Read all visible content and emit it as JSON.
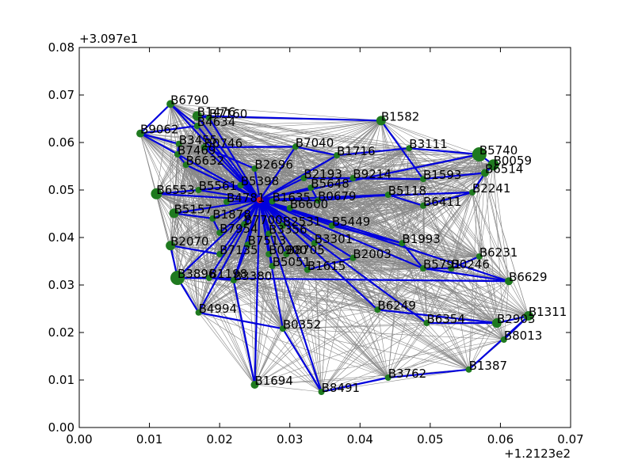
{
  "chart_data": {
    "type": "scatter",
    "title": "",
    "xlabel": "",
    "ylabel": "",
    "xlim": [
      0.0,
      0.07
    ],
    "ylim": [
      0.0,
      0.08
    ],
    "x_offset_label": "+1.2123e2",
    "y_offset_label": "+3.097e1",
    "x_ticks": [
      {
        "value": 0.0,
        "label": "0.00"
      },
      {
        "value": 0.01,
        "label": "0.01"
      },
      {
        "value": 0.02,
        "label": "0.02"
      },
      {
        "value": 0.03,
        "label": "0.03"
      },
      {
        "value": 0.04,
        "label": "0.04"
      },
      {
        "value": 0.05,
        "label": "0.05"
      },
      {
        "value": 0.06,
        "label": "0.06"
      },
      {
        "value": 0.07,
        "label": "0.07"
      }
    ],
    "y_ticks": [
      {
        "value": 0.0,
        "label": "0.00"
      },
      {
        "value": 0.01,
        "label": "0.01"
      },
      {
        "value": 0.02,
        "label": "0.02"
      },
      {
        "value": 0.03,
        "label": "0.03"
      },
      {
        "value": 0.04,
        "label": "0.04"
      },
      {
        "value": 0.05,
        "label": "0.05"
      },
      {
        "value": 0.06,
        "label": "0.06"
      },
      {
        "value": 0.07,
        "label": "0.07"
      },
      {
        "value": 0.08,
        "label": "0.08"
      }
    ],
    "grid": false,
    "colors": {
      "node": "#1f7a1f",
      "hub": "#cc2222",
      "mesh_edge": "#888888",
      "tree_edge": "#0000dd",
      "axis": "#000000"
    },
    "hub": {
      "x": 0.0257,
      "y": 0.0479
    },
    "nodes": [
      {
        "name": "B6790",
        "x": 0.013,
        "y": 0.0681,
        "size": 5
      },
      {
        "name": "B1476",
        "x": 0.0168,
        "y": 0.0656,
        "size": 6
      },
      {
        "name": "B7160",
        "x": 0.0185,
        "y": 0.0652,
        "size": 4
      },
      {
        "name": "B4634",
        "x": 0.0168,
        "y": 0.0635,
        "size": 4
      },
      {
        "name": "B9062",
        "x": 0.0087,
        "y": 0.0619,
        "size": 5
      },
      {
        "name": "B3455",
        "x": 0.0142,
        "y": 0.0597,
        "size": 4
      },
      {
        "name": "B0746",
        "x": 0.0178,
        "y": 0.059,
        "size": 4
      },
      {
        "name": "B7469",
        "x": 0.014,
        "y": 0.0575,
        "size": 4
      },
      {
        "name": "B6632",
        "x": 0.0152,
        "y": 0.0553,
        "size": 4
      },
      {
        "name": "B7040",
        "x": 0.0308,
        "y": 0.0591,
        "size": 4
      },
      {
        "name": "B1716",
        "x": 0.0367,
        "y": 0.0573,
        "size": 4
      },
      {
        "name": "B1582",
        "x": 0.043,
        "y": 0.0646,
        "size": 6
      },
      {
        "name": "B3111",
        "x": 0.047,
        "y": 0.0588,
        "size": 4
      },
      {
        "name": "B5740",
        "x": 0.057,
        "y": 0.0575,
        "size": 9
      },
      {
        "name": "B0059",
        "x": 0.059,
        "y": 0.0553,
        "size": 7
      },
      {
        "name": "B6514",
        "x": 0.0578,
        "y": 0.0536,
        "size": 5
      },
      {
        "name": "B2696",
        "x": 0.025,
        "y": 0.0545,
        "size": 4
      },
      {
        "name": "B2193",
        "x": 0.032,
        "y": 0.0525,
        "size": 4
      },
      {
        "name": "B9214",
        "x": 0.039,
        "y": 0.0525,
        "size": 4
      },
      {
        "name": "B1593",
        "x": 0.049,
        "y": 0.0523,
        "size": 4
      },
      {
        "name": "B5648",
        "x": 0.033,
        "y": 0.0505,
        "size": 4
      },
      {
        "name": "B6553",
        "x": 0.011,
        "y": 0.0492,
        "size": 7
      },
      {
        "name": "B5561",
        "x": 0.017,
        "y": 0.05,
        "size": 4
      },
      {
        "name": "B5398",
        "x": 0.023,
        "y": 0.051,
        "size": 4
      },
      {
        "name": "B5118",
        "x": 0.044,
        "y": 0.049,
        "size": 4
      },
      {
        "name": "B2241",
        "x": 0.056,
        "y": 0.0495,
        "size": 4
      },
      {
        "name": "B6411",
        "x": 0.049,
        "y": 0.0467,
        "size": 4
      },
      {
        "name": "B0679",
        "x": 0.034,
        "y": 0.0478,
        "size": 4
      },
      {
        "name": "B4781",
        "x": 0.021,
        "y": 0.0475,
        "size": 4
      },
      {
        "name": "B1635",
        "x": 0.0275,
        "y": 0.0476,
        "size": 4
      },
      {
        "name": "B6600",
        "x": 0.03,
        "y": 0.0462,
        "size": 4
      },
      {
        "name": "B5157",
        "x": 0.0135,
        "y": 0.0451,
        "size": 6
      },
      {
        "name": "B1878",
        "x": 0.019,
        "y": 0.044,
        "size": 4
      },
      {
        "name": "B7700",
        "x": 0.0235,
        "y": 0.0428,
        "size": 4
      },
      {
        "name": "B2531",
        "x": 0.029,
        "y": 0.0425,
        "size": 4
      },
      {
        "name": "B5449",
        "x": 0.036,
        "y": 0.0425,
        "size": 4
      },
      {
        "name": "B7954",
        "x": 0.02,
        "y": 0.041,
        "size": 4
      },
      {
        "name": "B3356",
        "x": 0.027,
        "y": 0.0408,
        "size": 4
      },
      {
        "name": "B2070",
        "x": 0.013,
        "y": 0.0383,
        "size": 6
      },
      {
        "name": "B7513",
        "x": 0.024,
        "y": 0.0385,
        "size": 4
      },
      {
        "name": "B3301",
        "x": 0.0335,
        "y": 0.0388,
        "size": 4
      },
      {
        "name": "B1993",
        "x": 0.046,
        "y": 0.0388,
        "size": 4
      },
      {
        "name": "B7135",
        "x": 0.02,
        "y": 0.0365,
        "size": 4
      },
      {
        "name": "B0900",
        "x": 0.027,
        "y": 0.0365,
        "size": 4
      },
      {
        "name": "B8705",
        "x": 0.0295,
        "y": 0.0365,
        "size": 4
      },
      {
        "name": "B2003",
        "x": 0.039,
        "y": 0.0357,
        "size": 4
      },
      {
        "name": "B6231",
        "x": 0.057,
        "y": 0.036,
        "size": 4
      },
      {
        "name": "B5051",
        "x": 0.0275,
        "y": 0.034,
        "size": 4
      },
      {
        "name": "B1615",
        "x": 0.0325,
        "y": 0.0332,
        "size": 4
      },
      {
        "name": "B5791",
        "x": 0.049,
        "y": 0.0335,
        "size": 4
      },
      {
        "name": "B0246",
        "x": 0.053,
        "y": 0.0335,
        "size": 4
      },
      {
        "name": "B3896",
        "x": 0.014,
        "y": 0.0315,
        "size": 9
      },
      {
        "name": "B1198",
        "x": 0.0185,
        "y": 0.0315,
        "size": 4
      },
      {
        "name": "B3380",
        "x": 0.022,
        "y": 0.031,
        "size": 4
      },
      {
        "name": "B6629",
        "x": 0.0612,
        "y": 0.0308,
        "size": 5
      },
      {
        "name": "B4994",
        "x": 0.017,
        "y": 0.0242,
        "size": 4
      },
      {
        "name": "B6249",
        "x": 0.0425,
        "y": 0.0248,
        "size": 4
      },
      {
        "name": "B1311",
        "x": 0.064,
        "y": 0.0235,
        "size": 6
      },
      {
        "name": "B2903",
        "x": 0.0595,
        "y": 0.022,
        "size": 6
      },
      {
        "name": "B6354",
        "x": 0.0495,
        "y": 0.022,
        "size": 4
      },
      {
        "name": "B0352",
        "x": 0.029,
        "y": 0.0208,
        "size": 4
      },
      {
        "name": "B8013",
        "x": 0.0605,
        "y": 0.0185,
        "size": 4
      },
      {
        "name": "B1387",
        "x": 0.0555,
        "y": 0.0122,
        "size": 4
      },
      {
        "name": "B3762",
        "x": 0.044,
        "y": 0.0105,
        "size": 4
      },
      {
        "name": "B1694",
        "x": 0.025,
        "y": 0.009,
        "size": 5
      },
      {
        "name": "B8491",
        "x": 0.0345,
        "y": 0.0075,
        "size": 4
      }
    ],
    "tree_edges": [
      [
        "B6790",
        "B9062"
      ],
      [
        "B6790",
        "B4634"
      ],
      [
        "B1476",
        "B7160"
      ],
      [
        "B1476",
        "B1582"
      ],
      [
        "B9062",
        "B3455"
      ],
      [
        "B9062",
        "B4634"
      ],
      [
        "B3455",
        "B7469"
      ],
      [
        "B7469",
        "B6632"
      ],
      [
        "B0746",
        "B7040"
      ],
      [
        "B7040",
        "B1716"
      ],
      [
        "B1716",
        "B3111"
      ],
      [
        "B3111",
        "B5740"
      ],
      [
        "B5740",
        "B0059"
      ],
      [
        "B0059",
        "B6514"
      ],
      [
        "B6514",
        "B1593"
      ],
      [
        "B1593",
        "B2193"
      ],
      [
        "B1582",
        "B1593"
      ],
      [
        "B2193",
        "B9214"
      ],
      [
        "B1593",
        "B9214"
      ],
      [
        "B2696",
        "B0746"
      ],
      [
        "B2241",
        "B6411"
      ],
      [
        "B6411",
        "B5118"
      ],
      [
        "B5118",
        "B0679"
      ],
      [
        "B6514",
        "B2241"
      ],
      [
        "B6553",
        "B5561"
      ],
      [
        "B5561",
        "B5398"
      ],
      [
        "B5157",
        "B1878"
      ],
      [
        "B1878",
        "B7954"
      ],
      [
        "B2070",
        "B7135"
      ],
      [
        "B3896",
        "B2070"
      ],
      [
        "B3896",
        "B1198"
      ],
      [
        "B3896",
        "B4994"
      ],
      [
        "B4994",
        "B0352"
      ],
      [
        "B1198",
        "B3380"
      ],
      [
        "B3380",
        "B7513"
      ],
      [
        "B1993",
        "B5449"
      ],
      [
        "B1993",
        "B5791"
      ],
      [
        "B5791",
        "B0246"
      ],
      [
        "B0246",
        "B6231"
      ],
      [
        "B5791",
        "B6629"
      ],
      [
        "B6249",
        "B2903"
      ],
      [
        "B2903",
        "B1311"
      ],
      [
        "B1311",
        "B8013"
      ],
      [
        "B1311",
        "B1387"
      ],
      [
        "B1387",
        "B3762"
      ],
      [
        "B3762",
        "B8491"
      ],
      [
        "B8491",
        "B0352"
      ],
      [
        "B1694",
        "B3380"
      ],
      [
        "B3896",
        "B6629"
      ],
      [
        "B2003",
        "B1615"
      ],
      [
        "B6354",
        "B2903"
      ],
      [
        "B5648",
        "B0679"
      ]
    ],
    "hub_edges": [
      "B6790",
      "B1476",
      "B7160",
      "B4634",
      "B9062",
      "B0746",
      "B6632",
      "B7040",
      "B1716",
      "B2696",
      "B2193",
      "B5648",
      "B5561",
      "B5398",
      "B6553",
      "B5157",
      "B4781",
      "B1635",
      "B6600",
      "B0679",
      "B5118",
      "B5740",
      "B2241",
      "B1878",
      "B7700",
      "B2531",
      "B5449",
      "B7954",
      "B3356",
      "B7513",
      "B3301",
      "B1993",
      "B7135",
      "B0900",
      "B8705",
      "B2003",
      "B5051",
      "B1615",
      "B5791",
      "B3896",
      "B1198",
      "B3380",
      "B4994",
      "B6249",
      "B6354",
      "B0352",
      "B1694",
      "B8491",
      "B6629"
    ]
  }
}
